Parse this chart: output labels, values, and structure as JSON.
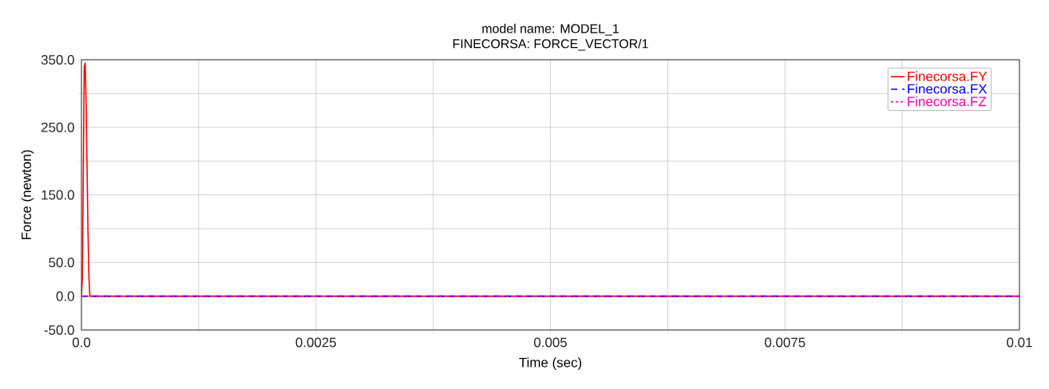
{
  "chart_data": {
    "type": "line",
    "title": "model name: MODEL_1",
    "subtitle": "FINECORSA: FORCE_VECTOR/1",
    "xlabel": "Time (sec)",
    "ylabel": "Force (newton)",
    "xlim": [
      0,
      0.01
    ],
    "ylim": [
      -50,
      350
    ],
    "xticks": [
      {
        "value": 0,
        "label": "0.0"
      },
      {
        "value": 0.00125,
        "label": null
      },
      {
        "value": 0.0025,
        "label": "0.0025"
      },
      {
        "value": 0.00375,
        "label": null
      },
      {
        "value": 0.005,
        "label": "0.005"
      },
      {
        "value": 0.00625,
        "label": null
      },
      {
        "value": 0.0075,
        "label": "0.0075"
      },
      {
        "value": 0.00875,
        "label": null
      },
      {
        "value": 0.01,
        "label": "0.01"
      }
    ],
    "yticks": [
      {
        "value": -50,
        "label": "-50.0"
      },
      {
        "value": 0,
        "label": "0.0"
      },
      {
        "value": 50,
        "label": "50.0"
      },
      {
        "value": 100,
        "label": null
      },
      {
        "value": 150,
        "label": "150.0"
      },
      {
        "value": 200,
        "label": null
      },
      {
        "value": 250,
        "label": "250.0"
      },
      {
        "value": 300,
        "label": null
      },
      {
        "value": 350,
        "label": "350.0"
      }
    ],
    "grid": true,
    "legend": "top right",
    "series": [
      {
        "name": "Finecorsa.FY",
        "color": "#ff0000",
        "line_style": "solid",
        "x": [
          0,
          1e-05,
          2e-05,
          3e-05,
          4e-05,
          5e-05,
          6e-05,
          7e-05,
          8e-05,
          9e-05,
          0.0001,
          0.01
        ],
        "values": [
          0,
          27,
          190,
          340,
          345,
          285,
          190,
          95,
          27,
          0,
          0,
          0
        ]
      },
      {
        "name": "Finecorsa.FX",
        "color": "#0000ff",
        "line_style": "dashed",
        "x": [
          0,
          0.01
        ],
        "values": [
          0,
          0
        ]
      },
      {
        "name": "Finecorsa.FZ",
        "color": "#ff00aa",
        "line_style": "dotted",
        "x": [
          0,
          0.01
        ],
        "values": [
          0,
          0
        ]
      }
    ]
  }
}
